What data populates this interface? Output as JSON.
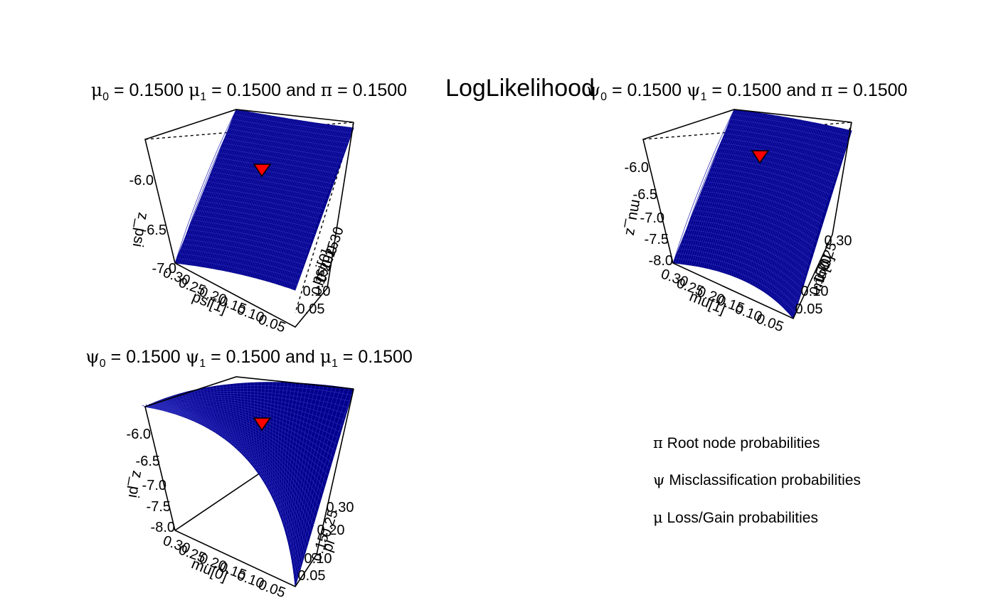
{
  "figure": {
    "main_title": "LogLikelihood",
    "colors": {
      "surface": "#00008B",
      "mesh": "#2a2ab8",
      "marker": "#FF0000"
    },
    "legend": [
      {
        "symbol": "π",
        "text": "Root node probabilities"
      },
      {
        "symbol": "ψ",
        "text": "Misclassification probabilities"
      },
      {
        "symbol": "μ",
        "text": "Loss/Gain probabilities"
      }
    ]
  },
  "chart_data": [
    {
      "type": "surface3d",
      "title": {
        "s1": "μ",
        "sub1": "0",
        "t1": " = 0.1500 ",
        "s2": "μ",
        "sub2": "1",
        "t2": " = 0.1500 and ",
        "s3": "π",
        "t3": " = 0.1500"
      },
      "x_label": "psi[1]",
      "y_label": "psi[0]",
      "z_label": "z_psi",
      "x_ticks": [
        "0.30",
        "0.25",
        "0.20",
        "0.15",
        "0.10",
        "0.05"
      ],
      "y_ticks": [
        "0.30",
        "0.25",
        "0.20",
        "0.15",
        "0.10",
        "0.05"
      ],
      "z_ticks": [
        "-6.0",
        "-6.5",
        "-7.0"
      ],
      "xlim": [
        0.01,
        0.3
      ],
      "ylim": [
        0.01,
        0.3
      ],
      "zlim": [
        -7.0,
        -5.8
      ],
      "marker": {
        "x": 0.15,
        "y": 0.15,
        "z": -5.91
      }
    },
    {
      "type": "surface3d",
      "title": {
        "s1": "ψ",
        "sub1": "0",
        "t1": " = 0.1500 ",
        "s2": "ψ",
        "sub2": "1",
        "t2": " = 0.1500 and ",
        "s3": "π",
        "t3": " = 0.1500"
      },
      "x_label": "mu[1]",
      "y_label": "mu[0]",
      "z_label": "mu_z",
      "x_ticks": [
        "0.30",
        "0.25",
        "0.20",
        "0.15",
        "0.10",
        "0.05"
      ],
      "y_ticks": [
        "0.30",
        "0.25",
        "0.20",
        "0.15",
        "0.10",
        "0.05"
      ],
      "z_ticks": [
        "-6.0",
        "-6.5",
        "-7.0",
        "-7.5",
        "-8.0"
      ],
      "xlim": [
        0.01,
        0.3
      ],
      "ylim": [
        0.01,
        0.3
      ],
      "zlim": [
        -8.0,
        -5.8
      ],
      "marker": {
        "x": 0.15,
        "y": 0.15,
        "z": -5.91
      }
    },
    {
      "type": "surface3d",
      "title": {
        "s1": "ψ",
        "sub1": "0",
        "t1": " = 0.1500 ",
        "s2": "ψ",
        "sub2": "1",
        "t2": " = 0.1500 and ",
        "s3": "μ",
        "sub3": "1",
        "t3": " = 0.1500"
      },
      "x_label": "mu[0]",
      "y_label": "pi",
      "z_label": "z_pi",
      "x_ticks": [
        "0.30",
        "0.25",
        "0.20",
        "0.15",
        "0.10",
        "0.05"
      ],
      "y_ticks": [
        "0.30",
        "0.25",
        "0.20",
        "0.15",
        "0.10",
        "0.05"
      ],
      "z_ticks": [
        "-6.0",
        "-6.5",
        "-7.0",
        "-7.5",
        "-8.0"
      ],
      "xlim": [
        0.01,
        0.3
      ],
      "ylim": [
        0.01,
        0.3
      ],
      "zlim": [
        -8.0,
        -5.8
      ],
      "marker": {
        "x": 0.15,
        "y": 0.15,
        "z": -5.91
      }
    }
  ]
}
